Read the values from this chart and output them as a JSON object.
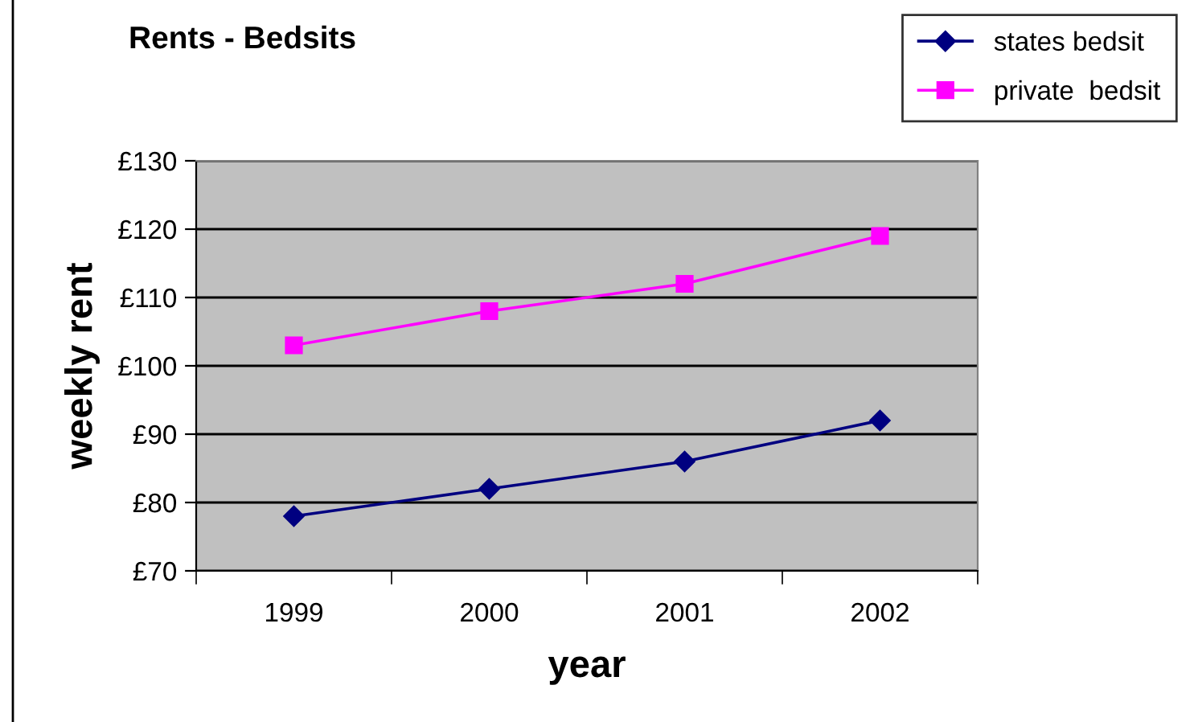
{
  "chart_data": {
    "type": "line",
    "title": "Rents - Bedsits",
    "xlabel": "year",
    "ylabel": "weekly rent",
    "categories": [
      "1999",
      "2000",
      "2001",
      "2002"
    ],
    "series": [
      {
        "name": "states bedsit",
        "color": "#000080",
        "marker": "diamond",
        "values": [
          78,
          82,
          86,
          92
        ]
      },
      {
        "name": "private  bedsit",
        "color": "#ff00ff",
        "marker": "square",
        "values": [
          103,
          108,
          112,
          119
        ]
      }
    ],
    "ylim": [
      70,
      130
    ],
    "yticks": [
      {
        "value": 70,
        "label": "£70"
      },
      {
        "value": 80,
        "label": "£80"
      },
      {
        "value": 90,
        "label": "£90"
      },
      {
        "value": 100,
        "label": "£100"
      },
      {
        "value": 110,
        "label": "£110"
      },
      {
        "value": 120,
        "label": "£120"
      },
      {
        "value": 130,
        "label": "£130"
      }
    ],
    "grid": "y",
    "legend": "top right"
  }
}
